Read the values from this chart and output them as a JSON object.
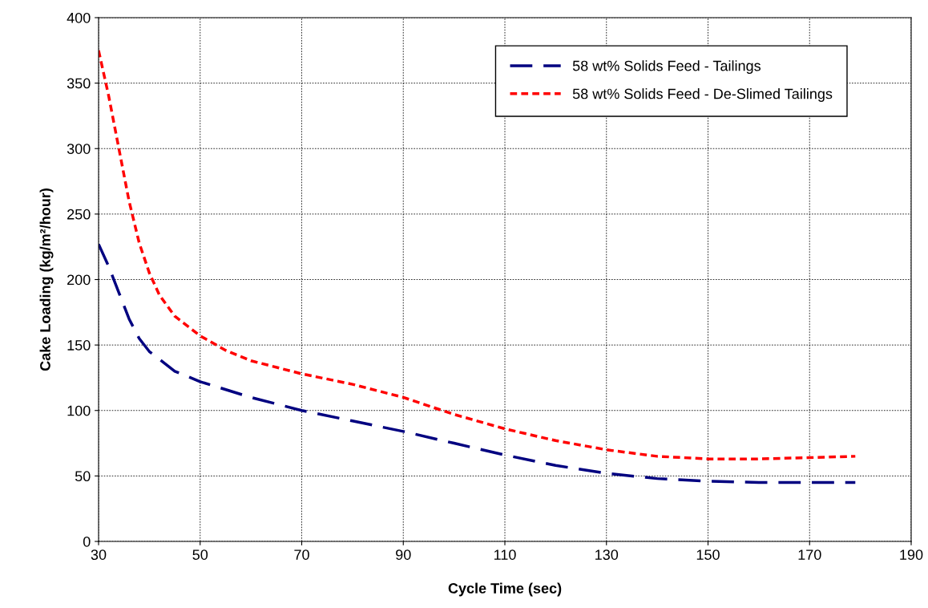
{
  "chart_data": {
    "type": "line",
    "xlabel": "Cycle Time (sec)",
    "ylabel": "Cake Loading (kg/m²/hour)",
    "xlim": [
      30,
      190
    ],
    "xticks": [
      30,
      50,
      70,
      90,
      110,
      130,
      150,
      170,
      190
    ],
    "ylim": [
      0,
      400
    ],
    "yticks": [
      0,
      50,
      100,
      150,
      200,
      250,
      300,
      350,
      400
    ],
    "grid": true,
    "legend": "top right",
    "marker": "none",
    "series": [
      {
        "name": "58 wt% Solids Feed - Tailings",
        "color": "#000080",
        "line_style": "dashed",
        "x": [
          30,
          32,
          34,
          36,
          38,
          40,
          45,
          50,
          60,
          70,
          80,
          90,
          100,
          110,
          120,
          130,
          140,
          150,
          160,
          170,
          179
        ],
        "values": [
          227,
          210,
          190,
          170,
          155,
          145,
          130,
          122,
          110,
          100,
          92,
          84,
          75,
          66,
          58,
          52,
          48,
          46,
          45,
          45,
          45
        ]
      },
      {
        "name": "58 wt% Solids Feed - De-Slimed Tailings",
        "color": "#ff0000",
        "line_style": "dotted",
        "x": [
          30,
          32,
          34,
          36,
          38,
          40,
          42,
          45,
          50,
          55,
          60,
          70,
          80,
          90,
          100,
          110,
          120,
          130,
          140,
          150,
          160,
          170,
          179
        ],
        "values": [
          375,
          340,
          300,
          260,
          228,
          205,
          188,
          172,
          157,
          146,
          138,
          128,
          120,
          110,
          97,
          86,
          77,
          70,
          65,
          63,
          63,
          64,
          65
        ]
      }
    ]
  }
}
